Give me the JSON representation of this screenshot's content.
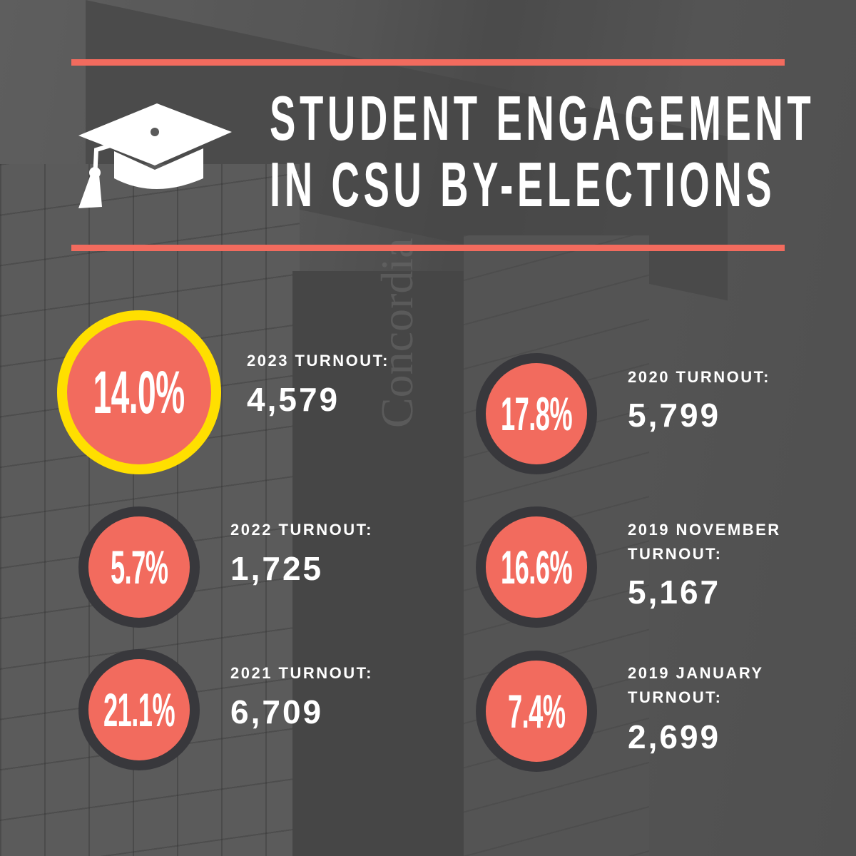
{
  "title": {
    "line1": "STUDENT ENGAGEMENT",
    "line2": "IN CSU BY-ELECTIONS"
  },
  "background_sign": "Concordia",
  "colors": {
    "accent": "#f26b5e",
    "highlight_ring": "#ffdf00",
    "ring": "#38383c",
    "text": "#ffffff"
  },
  "icon": "graduation-cap-icon",
  "items": [
    {
      "percent": "14.0%",
      "label": "2023 TURNOUT:",
      "value": "4,579"
    },
    {
      "percent": "5.7%",
      "label": "2022 TURNOUT:",
      "value": "1,725"
    },
    {
      "percent": "21.1%",
      "label": "2021 TURNOUT:",
      "value": "6,709"
    },
    {
      "percent": "17.8%",
      "label": "2020 TURNOUT:",
      "value": "5,799"
    },
    {
      "percent": "16.6%",
      "label_line1": "2019 NOVEMBER",
      "label_line2": "TURNOUT:",
      "value": "5,167"
    },
    {
      "percent": "7.4%",
      "label_line1": "2019 JANUARY",
      "label_line2": "TURNOUT:",
      "value": "2,699"
    }
  ]
}
